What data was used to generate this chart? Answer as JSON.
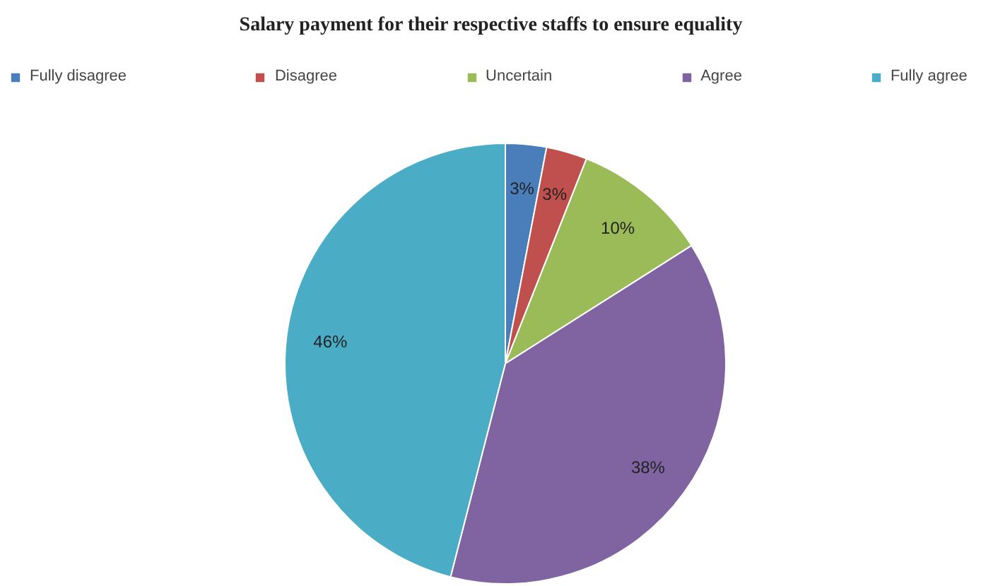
{
  "chart_data": {
    "type": "pie",
    "title": "Salary payment for their respective staffs to ensure equality",
    "categories": [
      "Fully disagree",
      "Disagree",
      "Uncertain",
      "Agree",
      "Fully agree"
    ],
    "values": [
      3,
      3,
      10,
      38,
      46
    ],
    "colors": [
      "#4a7ebb",
      "#c0504d",
      "#9bbb59",
      "#8064a2",
      "#4bacc6"
    ],
    "value_labels": [
      "3%",
      "3%",
      "10%",
      "38%",
      "46%"
    ],
    "legend": "top"
  }
}
